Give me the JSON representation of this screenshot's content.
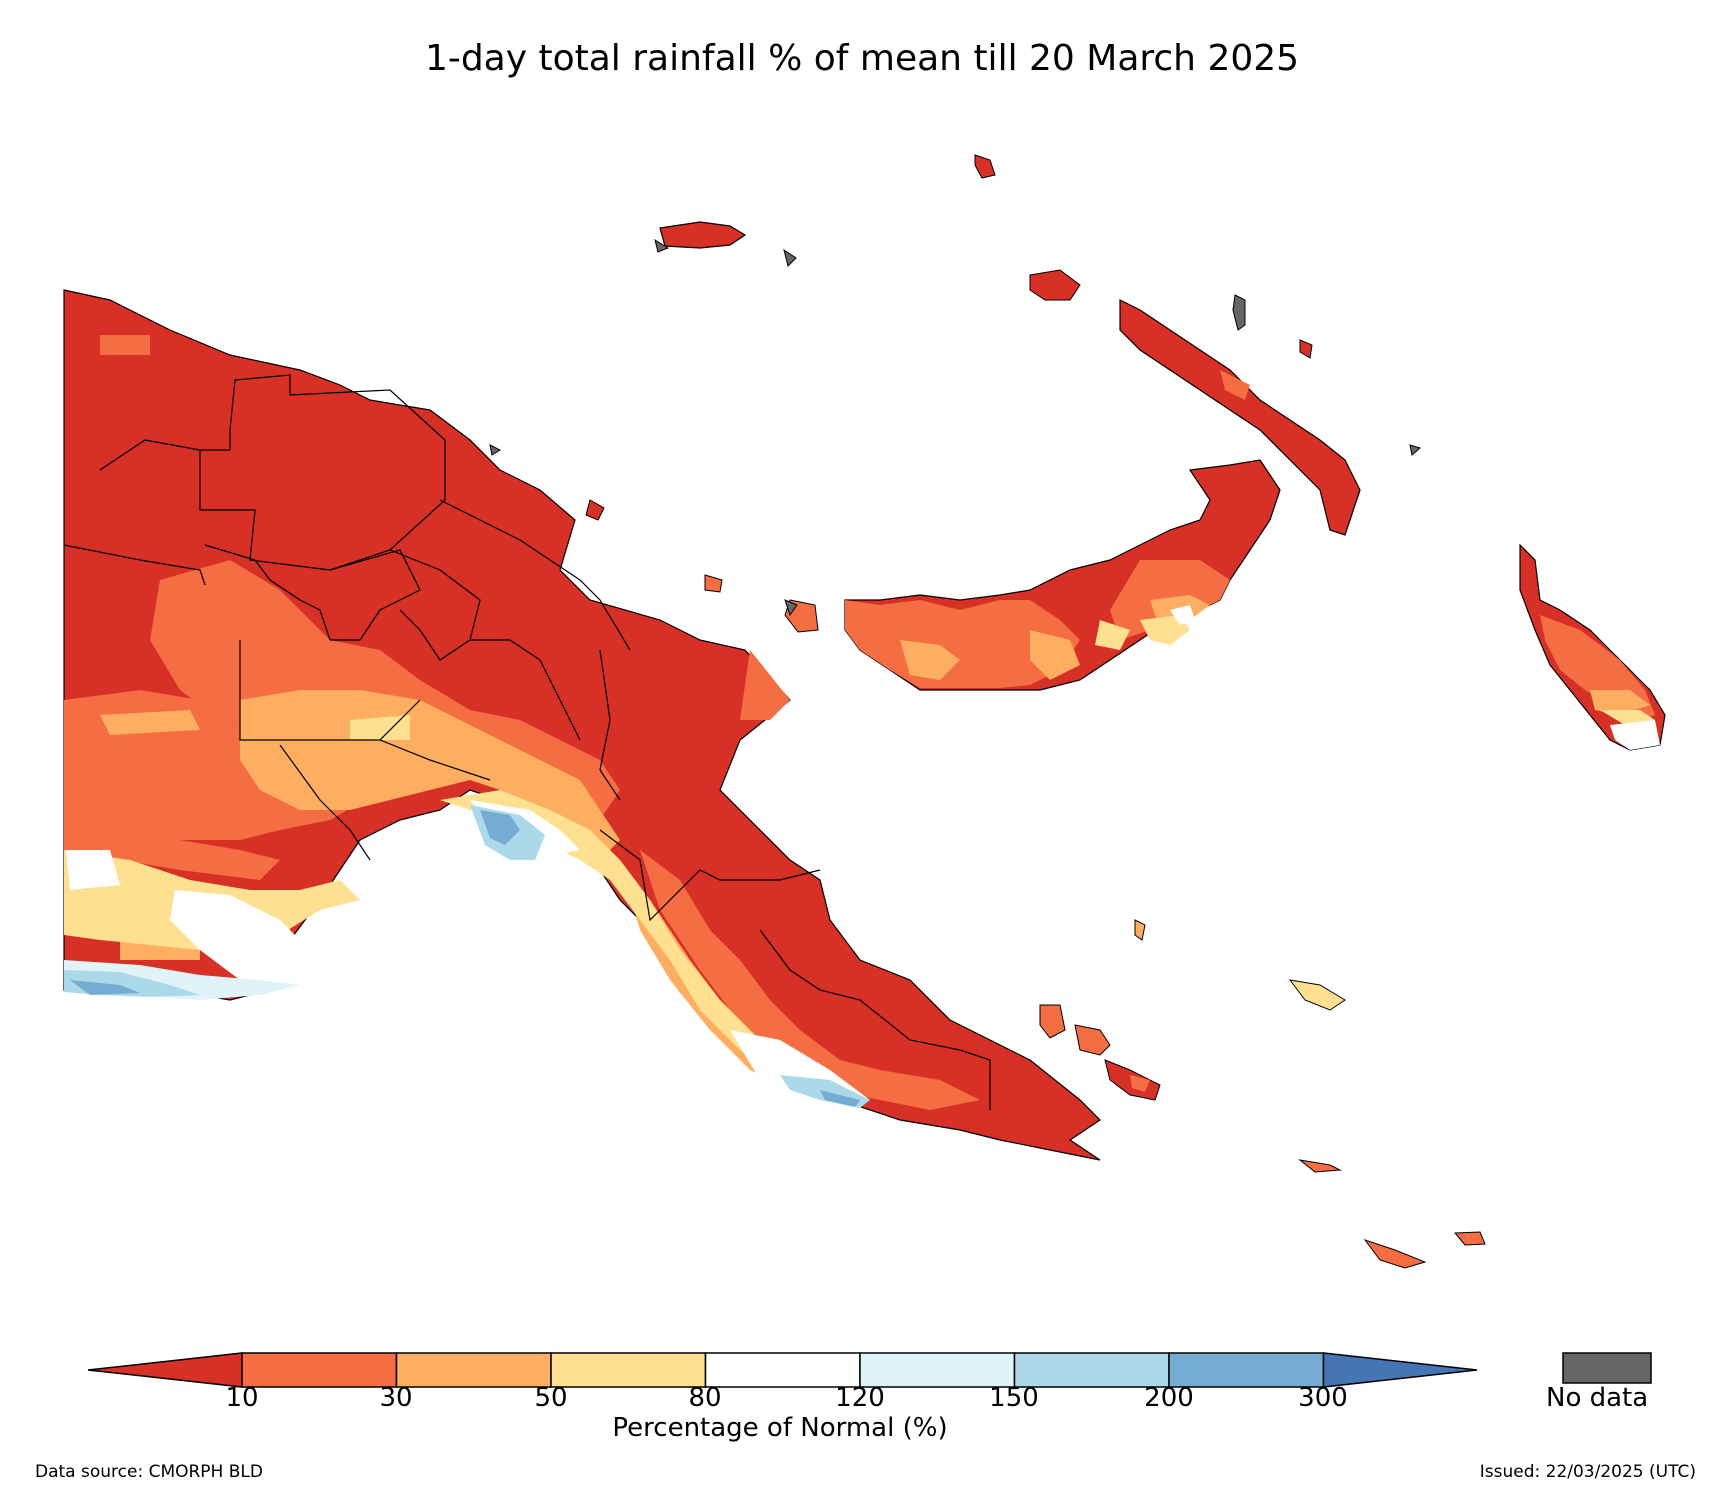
{
  "title": "1-day total rainfall % of mean till 20 March 2025",
  "legend": {
    "axis_label": "Percentage of Normal (%)",
    "tick_labels": [
      "10",
      "30",
      "50",
      "80",
      "120",
      "150",
      "200",
      "300"
    ],
    "bins": [
      {
        "range": "<10",
        "color": "#d73027"
      },
      {
        "range": "10-30",
        "color": "#f46d43"
      },
      {
        "range": "30-50",
        "color": "#fdae61"
      },
      {
        "range": "50-80",
        "color": "#fee090"
      },
      {
        "range": "80-120",
        "color": "#ffffff"
      },
      {
        "range": "120-150",
        "color": "#e0f3f8"
      },
      {
        "range": "150-200",
        "color": "#abd9e9"
      },
      {
        "range": "200-300",
        "color": "#74add1"
      },
      {
        "range": ">300",
        "color": "#4575b4"
      }
    ],
    "no_data_label": "No data",
    "no_data_color": "#666666"
  },
  "footer": {
    "source": "Data source: CMORPH BLD",
    "issued": "Issued: 22/03/2025 (UTC)"
  }
}
